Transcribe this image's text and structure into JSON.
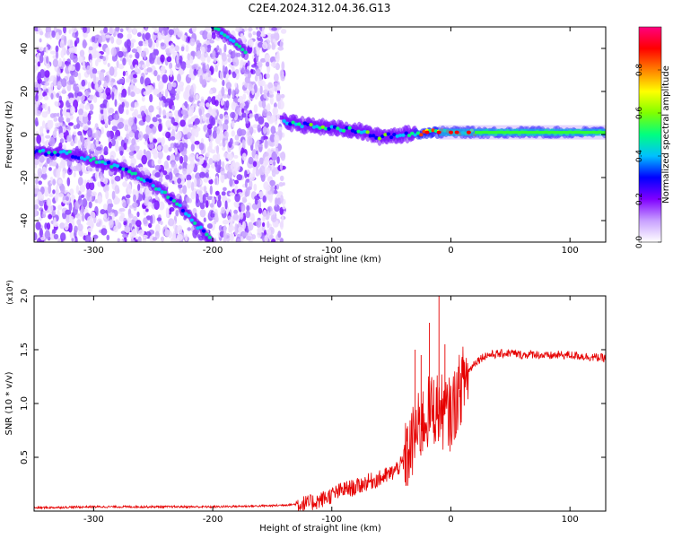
{
  "page": {
    "title": "C2E4.2024.312.04.36.G13"
  },
  "chart_data": [
    {
      "type": "heatmap",
      "title": "C2E4.2024.312.04.36.G13",
      "xlabel": "Height of straight line (km)",
      "ylabel": "Frequency (Hz)",
      "xlim": [
        -350,
        130
      ],
      "ylim": [
        -50,
        50
      ],
      "xticks": [
        -300,
        -200,
        -100,
        0,
        100
      ],
      "yticks": [
        -40,
        -20,
        0,
        20,
        40
      ],
      "colorbar": {
        "label": "Normalized spectral amplitude",
        "range": [
          0,
          1
        ],
        "ticks": [
          "0.0",
          "0.2",
          "0.4",
          "0.6",
          "0.8"
        ],
        "colormap": [
          "#ffffff",
          "#c8a0ff",
          "#8000ff",
          "#0000ff",
          "#00c0ff",
          "#00ff80",
          "#80ff00",
          "#ffff00",
          "#ff8000",
          "#ff0000",
          "#ff0080"
        ]
      },
      "noise_region_x": [
        -350,
        -140
      ],
      "signal_tracks": [
        {
          "name": "",
          "points": [
            [
              -350,
              -8
            ],
            [
              -320,
              -9
            ],
            [
              -300,
              -12
            ],
            [
              -280,
              -15
            ],
            [
              -260,
              -20
            ],
            [
              -240,
              -27
            ],
            [
              -230,
              -32
            ],
            [
              -220,
              -38
            ],
            [
              -210,
              -44
            ],
            [
              -200,
              -50
            ]
          ]
        },
        {
          "name": "",
          "points": [
            [
              -200,
              50
            ],
            [
              -190,
              46
            ],
            [
              -185,
              44
            ],
            [
              -178,
              42
            ],
            [
              -172,
              38
            ]
          ]
        },
        {
          "name": "",
          "points": [
            [
              -140,
              6
            ],
            [
              -120,
              4
            ],
            [
              -100,
              3
            ],
            [
              -80,
              2
            ],
            [
              -60,
              -1
            ],
            [
              -40,
              0
            ],
            [
              -20,
              1
            ],
            [
              0,
              1
            ],
            [
              20,
              1
            ],
            [
              50,
              1
            ],
            [
              80,
              1
            ],
            [
              110,
              1
            ],
            [
              130,
              1
            ]
          ]
        }
      ]
    },
    {
      "type": "line",
      "xlabel": "Height of straight line (km)",
      "ylabel": "SNR (10 * v/v)",
      "y_multiplier_label": "(x10⁴)",
      "xlim": [
        -350,
        130
      ],
      "ylim": [
        0,
        2.0
      ],
      "xticks": [
        -300,
        -200,
        -100,
        0,
        100
      ],
      "yticks": [
        "0.5",
        "1.0",
        "1.5",
        "2.0"
      ],
      "series": [
        {
          "name": "",
          "color": "#e60000",
          "x": [
            -350,
            -300,
            -250,
            -200,
            -150,
            -120,
            -110,
            -100,
            -90,
            -80,
            -70,
            -60,
            -50,
            -40,
            -35,
            -30,
            -25,
            -20,
            -15,
            -10,
            -5,
            0,
            5,
            10,
            15,
            20,
            25,
            30,
            40,
            50,
            60,
            70,
            80,
            90,
            100,
            110,
            120,
            130
          ],
          "y": [
            0.03,
            0.04,
            0.04,
            0.04,
            0.05,
            0.07,
            0.1,
            0.15,
            0.2,
            0.22,
            0.27,
            0.3,
            0.35,
            0.45,
            0.55,
            0.7,
            0.8,
            0.9,
            0.95,
            0.95,
            0.9,
            0.9,
            1.05,
            1.2,
            1.3,
            1.38,
            1.42,
            1.45,
            1.46,
            1.47,
            1.45,
            1.46,
            1.44,
            1.45,
            1.45,
            1.44,
            1.43,
            1.42
          ]
        }
      ],
      "spikes": [
        [
          -10,
          2.0
        ],
        [
          -18,
          1.75
        ],
        [
          -25,
          1.45
        ],
        [
          -30,
          1.5
        ],
        [
          -5,
          1.55
        ]
      ]
    }
  ]
}
